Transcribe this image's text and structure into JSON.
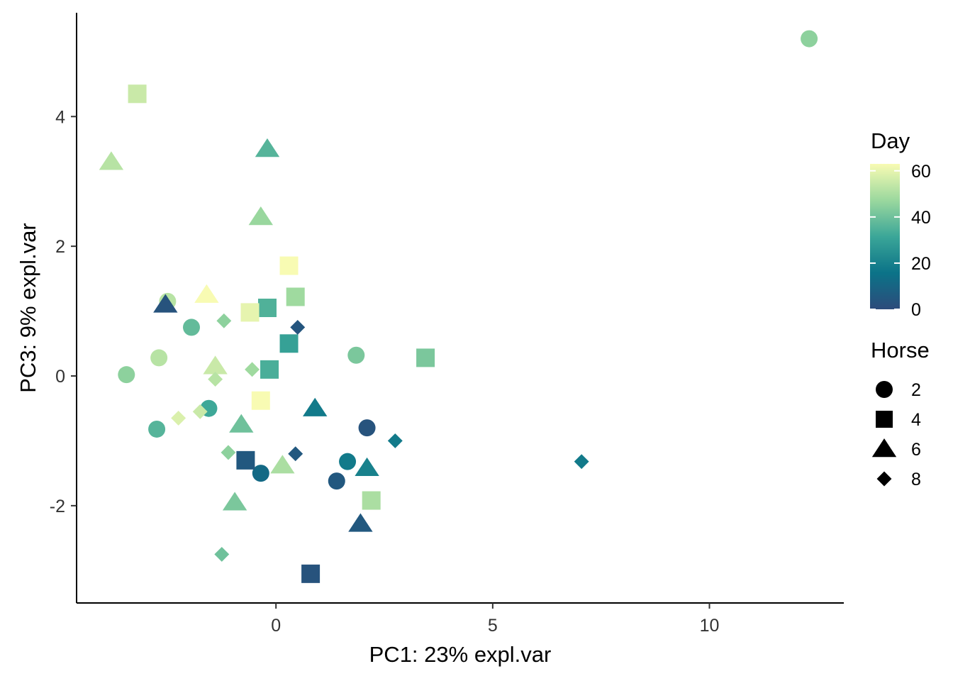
{
  "chart_data": {
    "type": "scatter",
    "xlabel": "PC1: 23% expl.var",
    "ylabel": "PC3: 9% expl.var",
    "xlim": [
      -4.6,
      13.1
    ],
    "ylim": [
      -3.5,
      5.6
    ],
    "x_ticks": [
      0,
      5,
      10
    ],
    "x_tick_labels": [
      "0",
      "5",
      "10"
    ],
    "y_ticks": [
      -2,
      0,
      2,
      4
    ],
    "y_tick_labels": [
      "-2",
      "0",
      "2",
      "4"
    ],
    "grid": false,
    "legend_position": "right",
    "color_legend": {
      "title": "Day",
      "min": 0,
      "max": 63,
      "breaks": [
        0,
        20,
        40,
        60
      ],
      "break_labels": [
        "0",
        "20",
        "40",
        "60"
      ],
      "colors": [
        "#2d4b7b",
        "#0b7388",
        "#3ba698",
        "#9bd89e",
        "#f8fbb3"
      ]
    },
    "shape_legend": {
      "title": "Horse",
      "entries": [
        {
          "label": "2",
          "shape": "circle"
        },
        {
          "label": "4",
          "shape": "square"
        },
        {
          "label": "6",
          "shape": "triangle"
        },
        {
          "label": "8",
          "shape": "diamond"
        }
      ]
    },
    "points": [
      {
        "x": 12.3,
        "y": 5.2,
        "day": 45,
        "horse": "2"
      },
      {
        "x": -2.5,
        "y": 1.15,
        "day": 52,
        "horse": "2"
      },
      {
        "x": -1.95,
        "y": 0.75,
        "day": 38,
        "horse": "2"
      },
      {
        "x": -2.7,
        "y": 0.28,
        "day": 52,
        "horse": "2"
      },
      {
        "x": -3.45,
        "y": 0.02,
        "day": 45,
        "horse": "2"
      },
      {
        "x": -1.55,
        "y": -0.5,
        "day": 32,
        "horse": "2"
      },
      {
        "x": -2.75,
        "y": -0.82,
        "day": 36,
        "horse": "2"
      },
      {
        "x": 1.85,
        "y": 0.32,
        "day": 42,
        "horse": "2"
      },
      {
        "x": 2.1,
        "y": -0.8,
        "day": 3,
        "horse": "2"
      },
      {
        "x": 1.65,
        "y": -1.32,
        "day": 18,
        "horse": "2"
      },
      {
        "x": -0.35,
        "y": -1.5,
        "day": 12,
        "horse": "2"
      },
      {
        "x": 1.4,
        "y": -1.62,
        "day": 5,
        "horse": "2"
      },
      {
        "x": -3.2,
        "y": 4.35,
        "day": 55,
        "horse": "4"
      },
      {
        "x": 0.3,
        "y": 1.7,
        "day": 63,
        "horse": "4"
      },
      {
        "x": 0.45,
        "y": 1.22,
        "day": 48,
        "horse": "4"
      },
      {
        "x": -0.2,
        "y": 1.05,
        "day": 35,
        "horse": "4"
      },
      {
        "x": -0.6,
        "y": 0.98,
        "day": 60,
        "horse": "4"
      },
      {
        "x": 0.3,
        "y": 0.5,
        "day": 30,
        "horse": "4"
      },
      {
        "x": -0.15,
        "y": 0.1,
        "day": 34,
        "horse": "4"
      },
      {
        "x": -0.35,
        "y": -0.38,
        "day": 63,
        "horse": "4"
      },
      {
        "x": 3.45,
        "y": 0.28,
        "day": 42,
        "horse": "4"
      },
      {
        "x": -0.7,
        "y": -1.3,
        "day": 5,
        "horse": "4"
      },
      {
        "x": 2.2,
        "y": -1.92,
        "day": 50,
        "horse": "4"
      },
      {
        "x": 0.8,
        "y": -3.05,
        "day": 3,
        "horse": "4"
      },
      {
        "x": -3.8,
        "y": 3.3,
        "day": 52,
        "horse": "6"
      },
      {
        "x": -0.2,
        "y": 3.5,
        "day": 36,
        "horse": "6"
      },
      {
        "x": -0.35,
        "y": 2.45,
        "day": 47,
        "horse": "6"
      },
      {
        "x": -1.6,
        "y": 1.25,
        "day": 63,
        "horse": "6"
      },
      {
        "x": -2.55,
        "y": 1.1,
        "day": 3,
        "horse": "6"
      },
      {
        "x": -1.4,
        "y": 0.15,
        "day": 55,
        "horse": "6"
      },
      {
        "x": 0.9,
        "y": -0.5,
        "day": 18,
        "horse": "6"
      },
      {
        "x": -0.8,
        "y": -0.75,
        "day": 40,
        "horse": "6"
      },
      {
        "x": 0.15,
        "y": -1.38,
        "day": 50,
        "horse": "6"
      },
      {
        "x": 2.1,
        "y": -1.42,
        "day": 20,
        "horse": "6"
      },
      {
        "x": -0.95,
        "y": -1.95,
        "day": 42,
        "horse": "6"
      },
      {
        "x": 1.95,
        "y": -2.28,
        "day": 5,
        "horse": "6"
      },
      {
        "x": 0.5,
        "y": 0.75,
        "day": 4,
        "horse": "8"
      },
      {
        "x": -1.2,
        "y": 0.85,
        "day": 45,
        "horse": "8"
      },
      {
        "x": -0.55,
        "y": 0.1,
        "day": 48,
        "horse": "8"
      },
      {
        "x": -1.4,
        "y": -0.05,
        "day": 52,
        "horse": "8"
      },
      {
        "x": -2.25,
        "y": -0.65,
        "day": 58,
        "horse": "8"
      },
      {
        "x": -1.75,
        "y": -0.55,
        "day": 55,
        "horse": "8"
      },
      {
        "x": -1.1,
        "y": -1.18,
        "day": 45,
        "horse": "8"
      },
      {
        "x": 0.45,
        "y": -1.2,
        "day": 5,
        "horse": "8"
      },
      {
        "x": 2.75,
        "y": -1.0,
        "day": 18,
        "horse": "8"
      },
      {
        "x": 7.05,
        "y": -1.32,
        "day": 18,
        "horse": "8"
      },
      {
        "x": -1.25,
        "y": -2.75,
        "day": 40,
        "horse": "8"
      }
    ]
  }
}
